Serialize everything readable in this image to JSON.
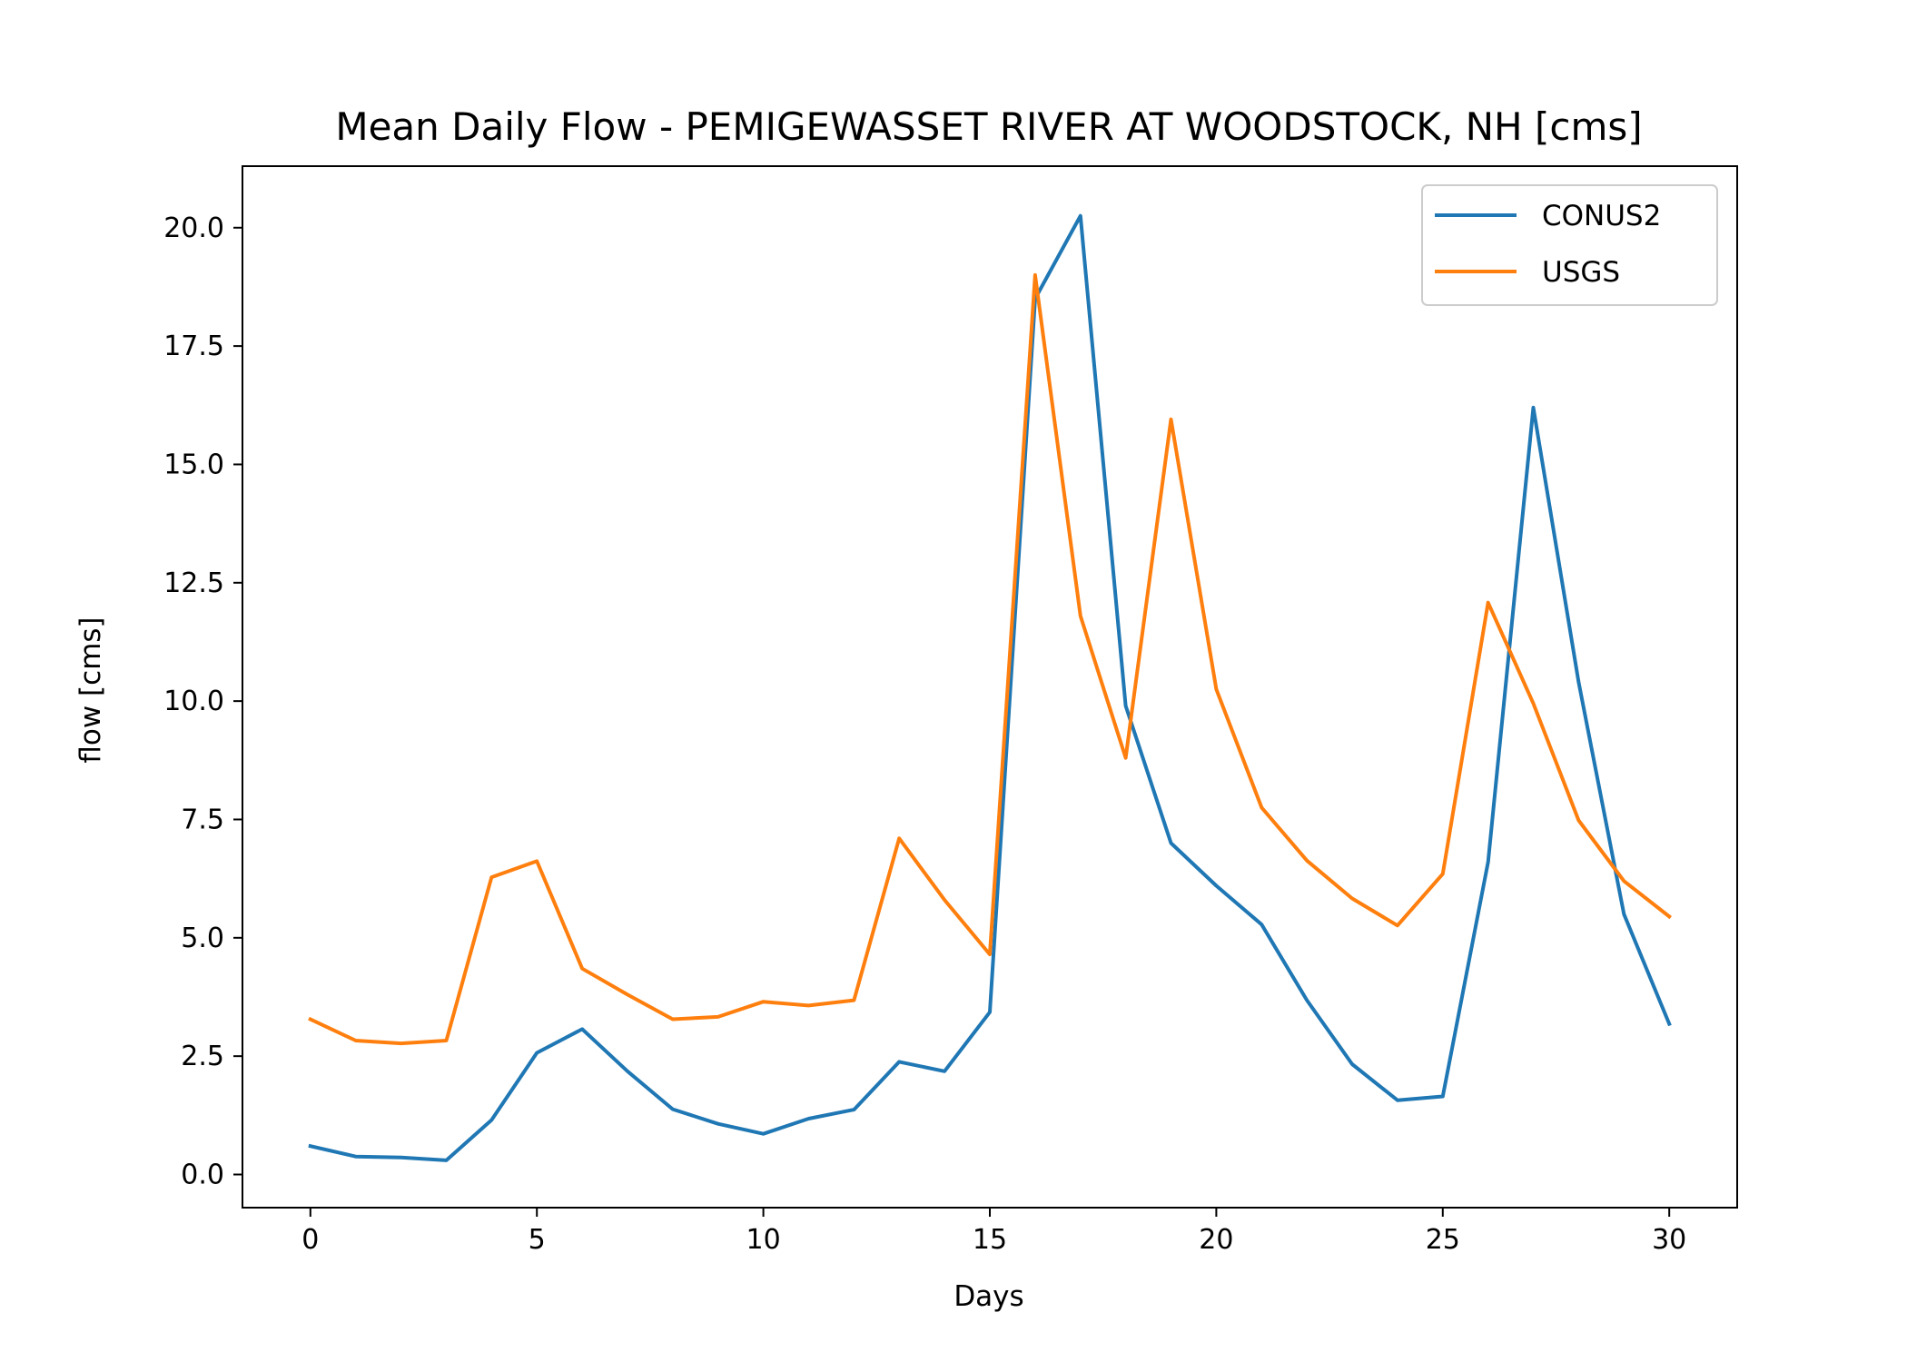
{
  "chart_data": {
    "type": "line",
    "title": "Mean Daily Flow - PEMIGEWASSET RIVER AT WOODSTOCK, NH [cms]",
    "xlabel": "Days",
    "ylabel": "flow [cms]",
    "xlim": [
      -1.5,
      31.5
    ],
    "ylim": [
      -0.7,
      21.3
    ],
    "xticks": [
      0,
      5,
      10,
      15,
      20,
      25,
      30
    ],
    "xtick_labels": [
      "0",
      "5",
      "10",
      "15",
      "20",
      "25",
      "30"
    ],
    "yticks": [
      0.0,
      2.5,
      5.0,
      7.5,
      10.0,
      12.5,
      15.0,
      17.5,
      20.0
    ],
    "ytick_labels": [
      "0.0",
      "2.5",
      "5.0",
      "7.5",
      "10.0",
      "12.5",
      "15.0",
      "17.5",
      "20.0"
    ],
    "grid": false,
    "legend_position": "top-right",
    "x": [
      0,
      1,
      2,
      3,
      4,
      5,
      6,
      7,
      8,
      9,
      10,
      11,
      12,
      13,
      14,
      15,
      16,
      17,
      18,
      19,
      20,
      21,
      22,
      23,
      24,
      25,
      26,
      27,
      28,
      29,
      30
    ],
    "series": [
      {
        "name": "CONUS2",
        "color": "#1f77b4",
        "values": [
          0.6,
          0.38,
          0.36,
          0.3,
          1.15,
          2.57,
          3.07,
          2.18,
          1.38,
          1.07,
          0.86,
          1.18,
          1.37,
          2.38,
          2.18,
          3.43,
          18.5,
          20.25,
          9.9,
          7.0,
          6.1,
          5.28,
          3.68,
          2.33,
          1.57,
          1.65,
          6.6,
          16.2,
          10.4,
          5.5,
          3.18
        ]
      },
      {
        "name": "USGS",
        "color": "#ff7f0e",
        "values": [
          3.28,
          2.83,
          2.77,
          2.83,
          6.28,
          6.62,
          4.35,
          3.8,
          3.28,
          3.33,
          3.65,
          3.57,
          3.68,
          7.1,
          5.8,
          4.65,
          19.0,
          11.8,
          8.8,
          15.95,
          10.25,
          7.75,
          6.63,
          5.83,
          5.26,
          6.35,
          12.08,
          9.95,
          7.48,
          6.2,
          5.45
        ]
      }
    ]
  }
}
